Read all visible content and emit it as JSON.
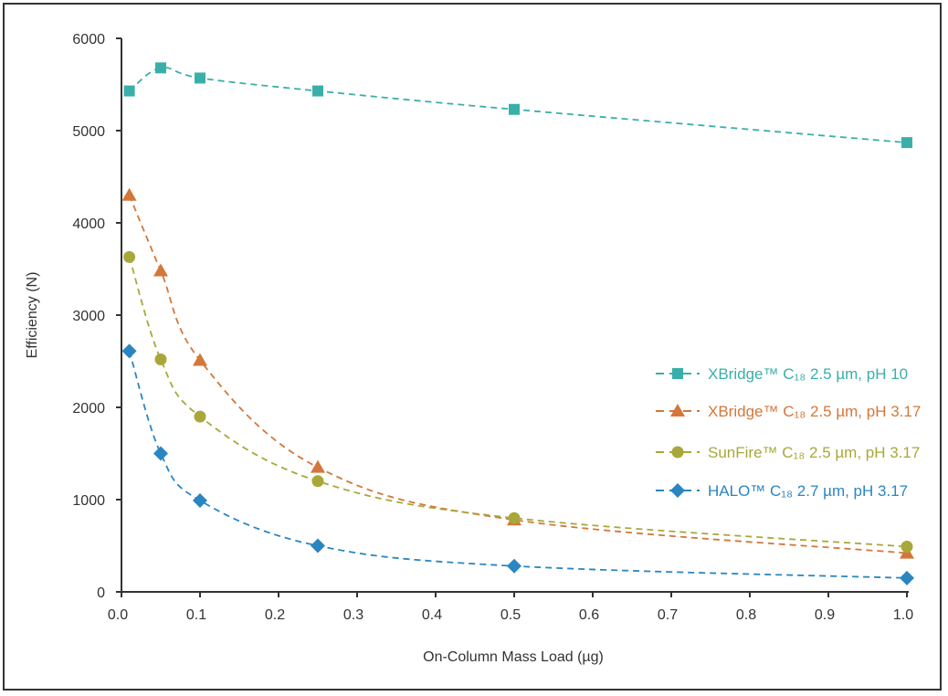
{
  "chart_data": {
    "type": "line",
    "title": "",
    "xlabel": "On-Column Mass Load (µg)",
    "ylabel": "Efficiency (N)",
    "xlim": [
      0,
      1.0
    ],
    "ylim": [
      0,
      6000
    ],
    "xticks": [
      "0.0",
      "0.1",
      "0.2",
      "0.3",
      "0.4",
      "0.5",
      "0.6",
      "0.7",
      "0.8",
      "0.9",
      "1.0"
    ],
    "yticks": [
      "0",
      "1000",
      "2000",
      "3000",
      "4000",
      "5000",
      "6000"
    ],
    "grid": false,
    "legend_placement": "right",
    "x": [
      0.01,
      0.05,
      0.1,
      0.25,
      0.5,
      1.0
    ],
    "series": [
      {
        "name": "XBridge™ C₁₈ 2.5 µm, pH 10",
        "marker": "square",
        "color": "#3aafa9",
        "values": [
          5430,
          5680,
          5570,
          5430,
          5230,
          4870
        ]
      },
      {
        "name": "XBridge™ C₁₈ 2.5 µm, pH 3.17",
        "marker": "triangle",
        "color": "#d4773a",
        "values": [
          4300,
          3480,
          2510,
          1350,
          780,
          420
        ]
      },
      {
        "name": "SunFire™ C₁₈ 2.5 µm, pH 3.17",
        "marker": "circle",
        "color": "#a8a83a",
        "values": [
          3630,
          2520,
          1900,
          1200,
          800,
          490
        ]
      },
      {
        "name": "HALO™ C₁₈ 2.7 µm, pH 3.17",
        "marker": "diamond",
        "color": "#2a86c0",
        "values": [
          2610,
          1500,
          990,
          500,
          280,
          150
        ]
      }
    ]
  }
}
